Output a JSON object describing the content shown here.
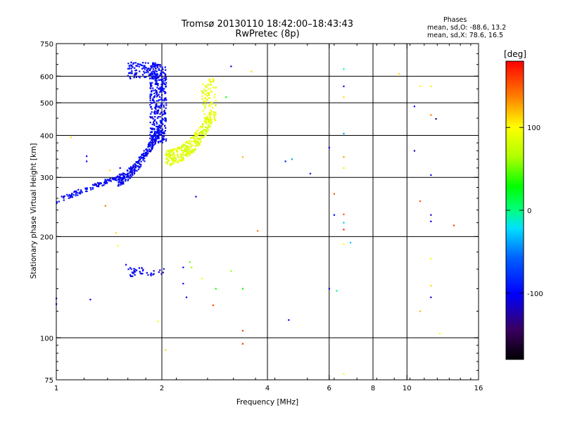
{
  "title_line1": "Tromsø 20130110 18:42:00–18:43:43",
  "title_line2": "RwPretec (8p)",
  "info": {
    "heading": "Phases",
    "o_line": "mean, sd,O: -88.6, 13.2",
    "x_line": "mean, sd,X:  78.6, 16.5"
  },
  "colorbar": {
    "unit": "[deg]",
    "ticks": [
      {
        "value": 100,
        "label": "100"
      },
      {
        "value": 0,
        "label": "0"
      },
      {
        "value": -100,
        "label": "-100"
      }
    ],
    "range": [
      -180,
      180
    ]
  },
  "chart_data": {
    "type": "scatter",
    "xlabel": "Frequency [MHz]",
    "ylabel": "Stationary phase Virtual Height [km]",
    "x_scale": "log",
    "y_scale": "log",
    "xlim": [
      1,
      16
    ],
    "ylim": [
      75,
      750
    ],
    "x_ticks": [
      {
        "value": 1,
        "label": "1"
      },
      {
        "value": 2,
        "label": "2"
      },
      {
        "value": 4,
        "label": "4"
      },
      {
        "value": 6,
        "label": "6"
      },
      {
        "value": 8,
        "label": "8"
      },
      {
        "value": 10,
        "label": "10"
      },
      {
        "value": 16,
        "label": "16"
      }
    ],
    "x_gridlines": [
      2,
      4,
      6,
      8,
      10
    ],
    "y_ticks": [
      {
        "value": 750,
        "label": "750"
      },
      {
        "value": 600,
        "label": "600"
      },
      {
        "value": 500,
        "label": "500"
      },
      {
        "value": 400,
        "label": "400"
      },
      {
        "value": 300,
        "label": "300"
      },
      {
        "value": 200,
        "label": "200"
      },
      {
        "value": 100,
        "label": "100"
      },
      {
        "value": 75,
        "label": "75"
      }
    ],
    "y_gridlines": [
      600,
      500,
      400,
      300,
      200,
      100
    ],
    "grid": true,
    "clusters": [
      {
        "name": "o-trace-lower",
        "freq": [
          1.0,
          1.5
        ],
        "height": [
          255,
          300
        ],
        "phase": -100,
        "count": 110
      },
      {
        "name": "o-trace-rise",
        "freq": [
          1.5,
          2.0
        ],
        "height": [
          295,
          420
        ],
        "phase": -100,
        "count": 260
      },
      {
        "name": "o-trace-upper",
        "freq": [
          1.85,
          2.06
        ],
        "height": [
          380,
          650
        ],
        "phase": -100,
        "count": 340
      },
      {
        "name": "o-trace-top",
        "freq": [
          1.6,
          1.95
        ],
        "height": [
          590,
          660
        ],
        "phase": -100,
        "count": 120
      },
      {
        "name": "x-trace",
        "freq": [
          2.05,
          2.78
        ],
        "height": [
          330,
          450
        ],
        "phase": 85,
        "count": 300
      },
      {
        "name": "x-trace-upper",
        "freq": [
          2.6,
          2.85
        ],
        "height": [
          430,
          590
        ],
        "phase": 90,
        "count": 90
      },
      {
        "name": "e-layer",
        "freq": [
          1.6,
          2.05
        ],
        "height": [
          152,
          162
        ],
        "phase": -105,
        "count": 40
      }
    ],
    "points": [
      {
        "f": 1.0,
        "h": 126,
        "p": -100
      },
      {
        "f": 1.0,
        "h": 131,
        "p": -100
      },
      {
        "f": 1.25,
        "h": 130,
        "p": -100
      },
      {
        "f": 1.38,
        "h": 247,
        "p": 140
      },
      {
        "f": 1.48,
        "h": 205,
        "p": 110
      },
      {
        "f": 1.5,
        "h": 188,
        "p": 95
      },
      {
        "f": 1.58,
        "h": 165,
        "p": -100
      },
      {
        "f": 1.95,
        "h": 112,
        "p": 95
      },
      {
        "f": 2.05,
        "h": 92,
        "p": 110
      },
      {
        "f": 2.3,
        "h": 145,
        "p": -100
      },
      {
        "f": 2.35,
        "h": 132,
        "p": -100
      },
      {
        "f": 2.3,
        "h": 162,
        "p": -100
      },
      {
        "f": 2.4,
        "h": 168,
        "p": 50
      },
      {
        "f": 2.43,
        "h": 162,
        "p": 60
      },
      {
        "f": 2.5,
        "h": 263,
        "p": -110
      },
      {
        "f": 2.6,
        "h": 150,
        "p": 90
      },
      {
        "f": 2.8,
        "h": 125,
        "p": 160
      },
      {
        "f": 2.85,
        "h": 140,
        "p": 30
      },
      {
        "f": 3.15,
        "h": 642,
        "p": -110
      },
      {
        "f": 3.15,
        "h": 158,
        "p": 60
      },
      {
        "f": 3.4,
        "h": 345,
        "p": 120
      },
      {
        "f": 3.4,
        "h": 140,
        "p": 30
      },
      {
        "f": 3.4,
        "h": 105,
        "p": 160
      },
      {
        "f": 3.4,
        "h": 96,
        "p": 160
      },
      {
        "f": 3.6,
        "h": 620,
        "p": 110
      },
      {
        "f": 3.75,
        "h": 208,
        "p": 140
      },
      {
        "f": 3.05,
        "h": 520,
        "p": 30
      },
      {
        "f": 4.5,
        "h": 335,
        "p": -90
      },
      {
        "f": 4.7,
        "h": 340,
        "p": -40
      },
      {
        "f": 4.6,
        "h": 113,
        "p": -100
      },
      {
        "f": 5.3,
        "h": 308,
        "p": -90
      },
      {
        "f": 6.0,
        "h": 368,
        "p": -100
      },
      {
        "f": 6.0,
        "h": 140,
        "p": -100
      },
      {
        "f": 6.2,
        "h": 268,
        "p": 150
      },
      {
        "f": 6.2,
        "h": 232,
        "p": -100
      },
      {
        "f": 6.3,
        "h": 138,
        "p": -10
      },
      {
        "f": 6.6,
        "h": 630,
        "p": 0
      },
      {
        "f": 6.6,
        "h": 560,
        "p": -100
      },
      {
        "f": 6.6,
        "h": 520,
        "p": 110
      },
      {
        "f": 6.6,
        "h": 405,
        "p": -40
      },
      {
        "f": 6.6,
        "h": 345,
        "p": 130
      },
      {
        "f": 6.6,
        "h": 320,
        "p": 80
      },
      {
        "f": 6.6,
        "h": 233,
        "p": 150
      },
      {
        "f": 6.6,
        "h": 220,
        "p": -30
      },
      {
        "f": 6.6,
        "h": 210,
        "p": 170
      },
      {
        "f": 6.6,
        "h": 190,
        "p": 100
      },
      {
        "f": 6.9,
        "h": 192,
        "p": -30
      },
      {
        "f": 6.6,
        "h": 78,
        "p": 100
      },
      {
        "f": 9.5,
        "h": 610,
        "p": 110
      },
      {
        "f": 10.5,
        "h": 488,
        "p": -100
      },
      {
        "f": 10.5,
        "h": 360,
        "p": -120
      },
      {
        "f": 10.9,
        "h": 560,
        "p": 100
      },
      {
        "f": 10.9,
        "h": 255,
        "p": 150
      },
      {
        "f": 10.9,
        "h": 120,
        "p": 120
      },
      {
        "f": 11.7,
        "h": 560,
        "p": 105
      },
      {
        "f": 11.7,
        "h": 460,
        "p": 140
      },
      {
        "f": 11.7,
        "h": 305,
        "p": -100
      },
      {
        "f": 11.7,
        "h": 232,
        "p": -110
      },
      {
        "f": 11.7,
        "h": 222,
        "p": -100
      },
      {
        "f": 11.7,
        "h": 172,
        "p": 100
      },
      {
        "f": 11.7,
        "h": 143,
        "p": 110
      },
      {
        "f": 11.7,
        "h": 132,
        "p": -110
      },
      {
        "f": 12.1,
        "h": 448,
        "p": -130
      },
      {
        "f": 12.4,
        "h": 103,
        "p": 100
      },
      {
        "f": 13.6,
        "h": 216,
        "p": 160
      },
      {
        "f": 1.1,
        "h": 395,
        "p": 110
      },
      {
        "f": 1.22,
        "h": 347,
        "p": -100
      },
      {
        "f": 1.22,
        "h": 335,
        "p": -100
      },
      {
        "f": 1.42,
        "h": 315,
        "p": 110
      },
      {
        "f": 1.52,
        "h": 320,
        "p": -100
      }
    ]
  }
}
